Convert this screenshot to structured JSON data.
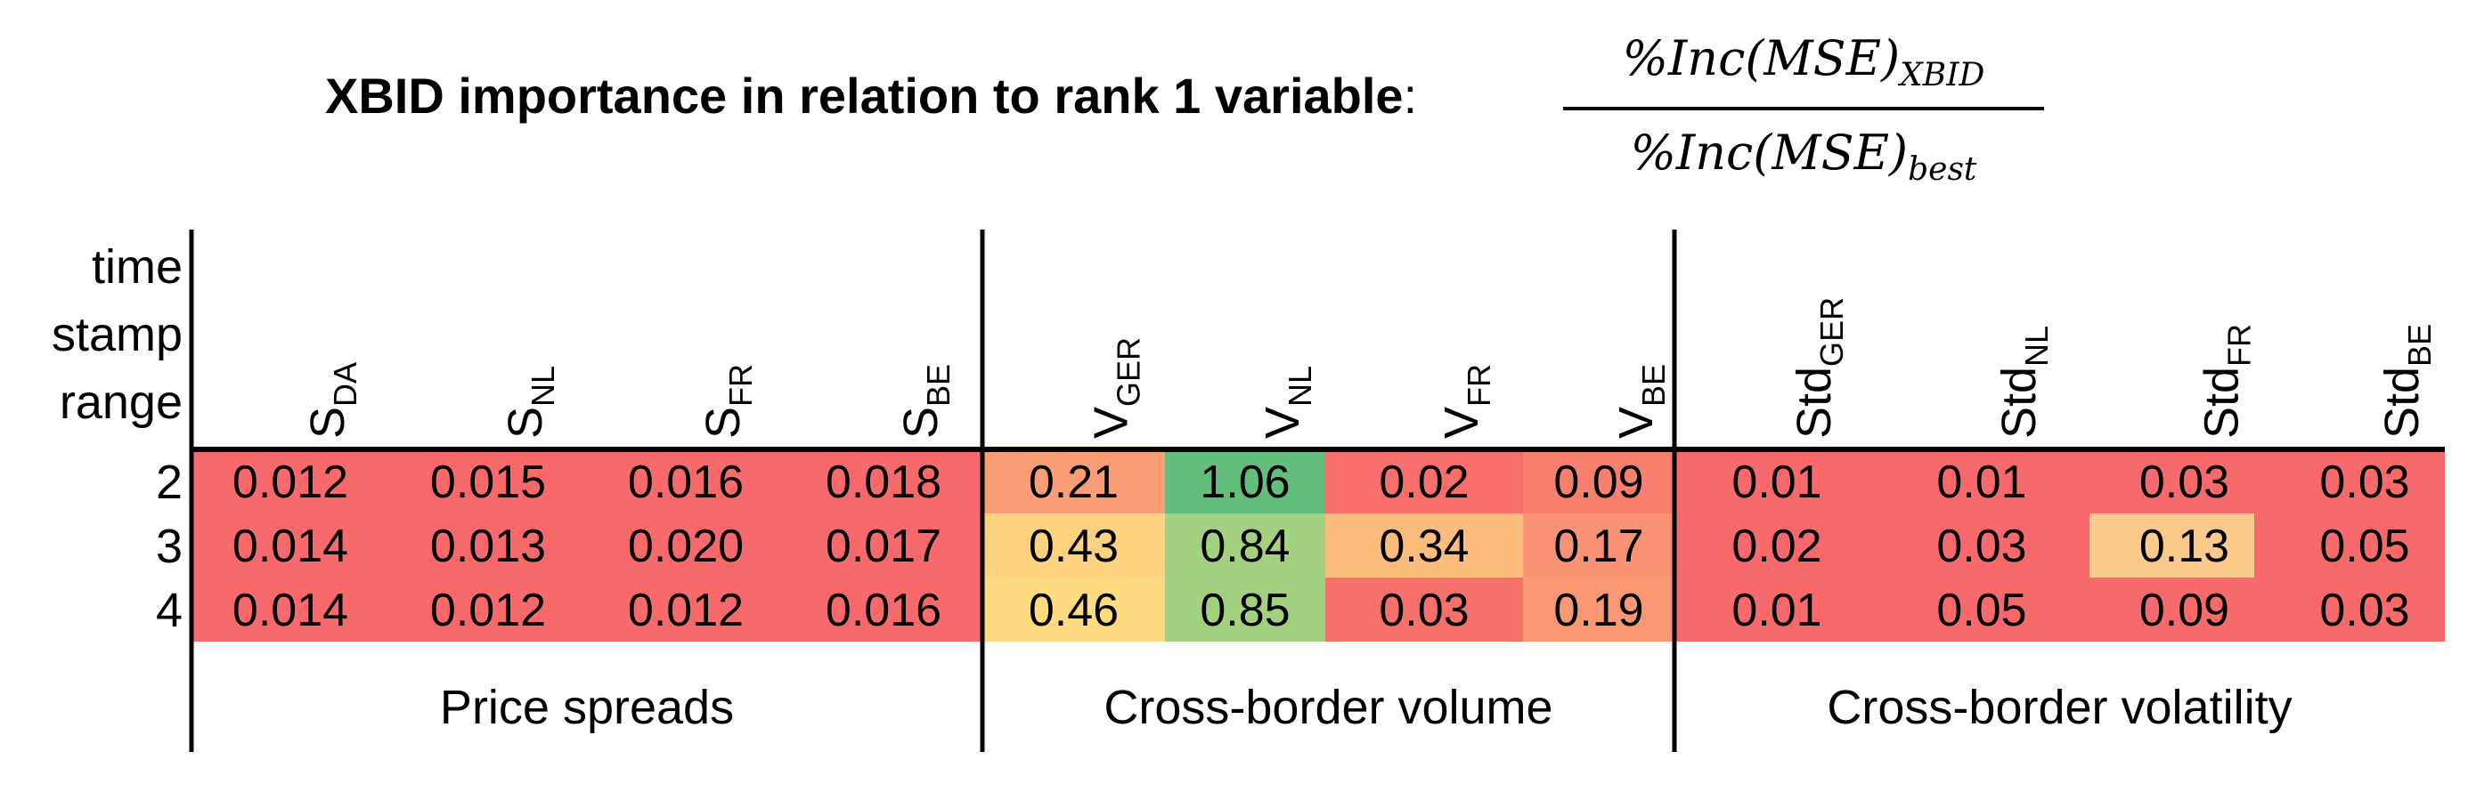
{
  "title": {
    "bold_text": "XBID importance in relation to rank 1 variable",
    "colon": ":",
    "numerator": "%Inc(MSE)",
    "numerator_sub": "XBID",
    "denominator": "%Inc(MSE)",
    "denominator_sub": "best"
  },
  "chart_data": {
    "type": "heatmap",
    "row_header": [
      "time",
      "stamp",
      "range"
    ],
    "rows": [
      "2",
      "3",
      "4"
    ],
    "groups": [
      {
        "label": "Price spreads",
        "columns": [
          {
            "base": "S",
            "sub": "DA"
          },
          {
            "base": "S",
            "sub": "NL"
          },
          {
            "base": "S",
            "sub": "FR"
          },
          {
            "base": "S",
            "sub": "BE"
          }
        ],
        "values": [
          [
            "0.012",
            "0.015",
            "0.016",
            "0.018"
          ],
          [
            "0.014",
            "0.013",
            "0.020",
            "0.017"
          ],
          [
            "0.014",
            "0.012",
            "0.012",
            "0.016"
          ]
        ]
      },
      {
        "label": "Cross-border volume",
        "columns": [
          {
            "base": "V",
            "sub": "GER"
          },
          {
            "base": "V",
            "sub": "NL"
          },
          {
            "base": "V",
            "sub": "FR"
          },
          {
            "base": "V",
            "sub": "BE"
          }
        ],
        "values": [
          [
            "0.21",
            "1.06",
            "0.02",
            "0.09"
          ],
          [
            "0.43",
            "0.84",
            "0.34",
            "0.17"
          ],
          [
            "0.46",
            "0.85",
            "0.03",
            "0.19"
          ]
        ]
      },
      {
        "label": "Cross-border volatility",
        "columns": [
          {
            "base": "Std",
            "sub": "GER"
          },
          {
            "base": "Std",
            "sub": "NL"
          },
          {
            "base": "Std",
            "sub": "FR"
          },
          {
            "base": "Std",
            "sub": "BE"
          }
        ],
        "values": [
          [
            "0.01",
            "0.01",
            "0.03",
            "0.03"
          ],
          [
            "0.02",
            "0.03",
            "0.13",
            "0.05"
          ],
          [
            "0.01",
            "0.05",
            "0.09",
            "0.03"
          ]
        ]
      }
    ],
    "color_scale": {
      "low": "#f8696b",
      "mid": "#ffeb84",
      "high": "#63be7b",
      "range": [
        0,
        1.06
      ]
    }
  }
}
